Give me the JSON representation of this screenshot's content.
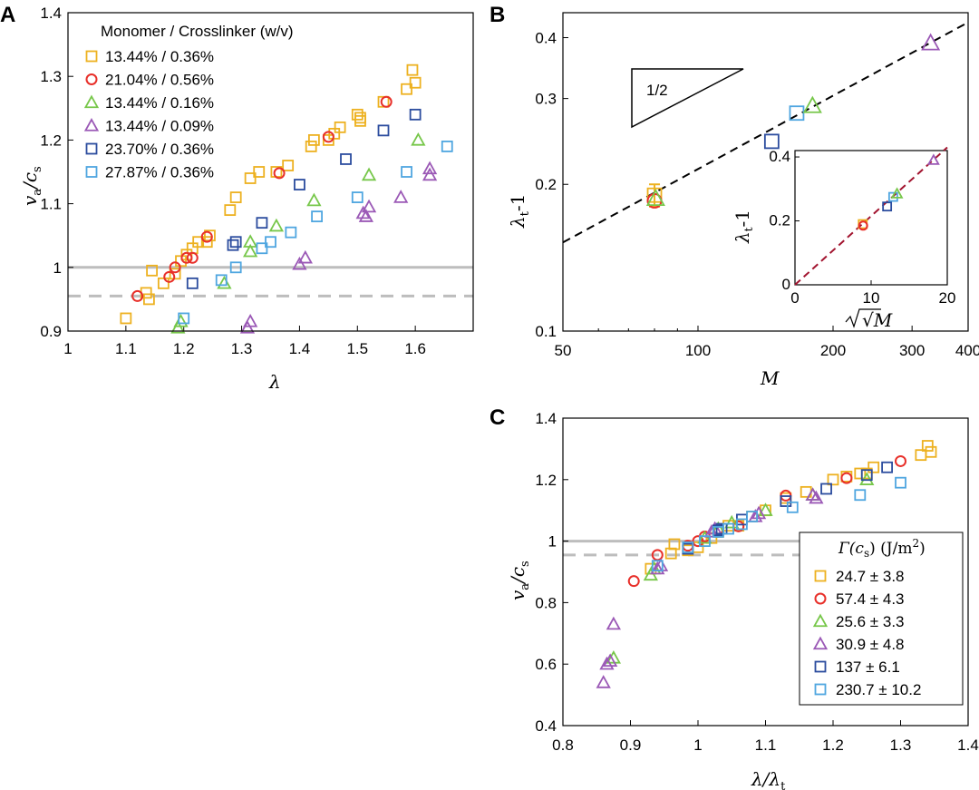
{
  "colors": {
    "orange": "#EDB120",
    "red": "#E8302A",
    "green": "#77C74A",
    "purple": "#9B59B6",
    "navy": "#2B4C9E",
    "lightblue": "#4FA6E0",
    "gray": "#BDBDBD",
    "darkred": "#A2142F"
  },
  "chart_data": [
    {
      "id": "A",
      "panel_label": "A",
      "type": "scatter",
      "xlabel": "λ",
      "ylabel": {
        "main": "v",
        "sub1": "a",
        "mid": "/c",
        "sub2": "s"
      },
      "xlim": [
        1,
        1.7
      ],
      "ylim": [
        0.9,
        1.4
      ],
      "xticks": [
        1,
        1.1,
        1.2,
        1.3,
        1.4,
        1.5,
        1.6
      ],
      "xtick_labels": [
        "1",
        "1.1",
        "1.2",
        "1.3",
        "1.4",
        "1.5",
        "1.6"
      ],
      "yticks": [
        0.9,
        1,
        1.1,
        1.2,
        1.3,
        1.4
      ],
      "ytick_labels": [
        "0.9",
        "1",
        "1.1",
        "1.2",
        "1.3",
        "1.4"
      ],
      "reference_lines": [
        {
          "y": 1.0,
          "style": "solid"
        },
        {
          "y": 0.955,
          "style": "dashed"
        }
      ],
      "legend_title": "Monomer / Crosslinker (w/v)",
      "series": [
        {
          "name": "13.44% / 0.36%",
          "marker": "square",
          "color": "orange",
          "x": [
            1.1,
            1.135,
            1.14,
            1.145,
            1.165,
            1.185,
            1.195,
            1.205,
            1.215,
            1.225,
            1.245,
            1.24,
            1.28,
            1.29,
            1.315,
            1.33,
            1.36,
            1.38,
            1.42,
            1.425,
            1.45,
            1.46,
            1.47,
            1.5,
            1.505,
            1.505,
            1.545,
            1.585,
            1.595,
            1.6
          ],
          "y": [
            0.92,
            0.96,
            0.95,
            0.995,
            0.975,
            0.99,
            1.01,
            1.02,
            1.03,
            1.04,
            1.05,
            1.04,
            1.09,
            1.11,
            1.14,
            1.15,
            1.15,
            1.16,
            1.19,
            1.2,
            1.2,
            1.21,
            1.22,
            1.24,
            1.23,
            1.235,
            1.26,
            1.28,
            1.31,
            1.29
          ]
        },
        {
          "name": "21.04% / 0.56%",
          "marker": "circle",
          "color": "red",
          "x": [
            1.12,
            1.175,
            1.185,
            1.205,
            1.215,
            1.24,
            1.365,
            1.45,
            1.55
          ],
          "y": [
            0.955,
            0.985,
            1.0,
            1.015,
            1.015,
            1.048,
            1.148,
            1.205,
            1.26
          ]
        },
        {
          "name": "13.44% / 0.16%",
          "marker": "triangle",
          "color": "green",
          "x": [
            1.19,
            1.195,
            1.27,
            1.315,
            1.315,
            1.36,
            1.425,
            1.52,
            1.605
          ],
          "y": [
            0.905,
            0.915,
            0.975,
            1.025,
            1.04,
            1.065,
            1.105,
            1.145,
            1.2
          ]
        },
        {
          "name": "13.44% / 0.09%",
          "marker": "triangle",
          "color": "purple",
          "x": [
            1.31,
            1.315,
            1.4,
            1.41,
            1.51,
            1.52,
            1.515,
            1.575,
            1.625,
            1.625
          ],
          "y": [
            0.905,
            0.915,
            1.005,
            1.015,
            1.085,
            1.095,
            1.08,
            1.11,
            1.155,
            1.145
          ]
        },
        {
          "name": "23.70% / 0.36%",
          "marker": "square",
          "color": "navy",
          "x": [
            1.215,
            1.285,
            1.29,
            1.335,
            1.4,
            1.48,
            1.545,
            1.6
          ],
          "y": [
            0.975,
            1.035,
            1.04,
            1.07,
            1.13,
            1.17,
            1.215,
            1.24
          ]
        },
        {
          "name": "27.87% / 0.36%",
          "marker": "square",
          "color": "lightblue",
          "x": [
            1.2,
            1.265,
            1.29,
            1.335,
            1.35,
            1.385,
            1.43,
            1.5,
            1.585,
            1.655
          ],
          "y": [
            0.92,
            0.98,
            1.0,
            1.03,
            1.04,
            1.055,
            1.08,
            1.11,
            1.15,
            1.19
          ]
        }
      ]
    },
    {
      "id": "B",
      "panel_label": "B",
      "type": "scatter",
      "scale": "log-log",
      "xlabel": "M",
      "ylabel": {
        "main": "λ",
        "sub": "t",
        "suffix": "-1"
      },
      "xlim": [
        50,
        400
      ],
      "ylim": [
        0.1,
        0.45
      ],
      "xticks": [
        50,
        100,
        200,
        300,
        400
      ],
      "xtick_labels": [
        "50",
        "100",
        "200",
        "300",
        "400"
      ],
      "yticks": [
        0.1,
        0.2,
        0.3,
        0.4
      ],
      "ytick_labels": [
        "0.1",
        "0.2",
        "0.3",
        "0.4"
      ],
      "slope_label": "1/2",
      "fit": {
        "style": "dashed",
        "x": [
          50,
          400
        ],
        "y": [
          0.152,
          0.43
        ]
      },
      "points": [
        {
          "x": 80,
          "y": 0.19,
          "marker": "square",
          "color": "orange",
          "err": 0.01
        },
        {
          "x": 80,
          "y": 0.185,
          "marker": "circle",
          "color": "red"
        },
        {
          "x": 80.5,
          "y": 0.187,
          "marker": "triangle",
          "color": "green"
        },
        {
          "x": 146,
          "y": 0.245,
          "marker": "square",
          "color": "navy"
        },
        {
          "x": 166,
          "y": 0.28,
          "marker": "square",
          "color": "lightblue"
        },
        {
          "x": 180,
          "y": 0.29,
          "marker": "triangle",
          "color": "green"
        },
        {
          "x": 330,
          "y": 0.39,
          "marker": "triangle",
          "color": "purple"
        }
      ],
      "inset": {
        "xlabel": "√M",
        "ylabel": {
          "main": "λ",
          "sub": "t",
          "suffix": "-1"
        },
        "xlim": [
          0,
          20
        ],
        "ylim": [
          0,
          0.42
        ],
        "xticks": [
          0,
          10,
          20
        ],
        "xtick_labels": [
          "0",
          "10",
          "20"
        ],
        "yticks": [
          0,
          0.2,
          0.4
        ],
        "ytick_labels": [
          "0",
          "0.2",
          "0.4"
        ],
        "fit": {
          "style": "dashed",
          "color": "darkred",
          "x": [
            0,
            20
          ],
          "y": [
            0,
            0.43
          ]
        },
        "points": [
          {
            "x": 8.9,
            "y": 0.19,
            "marker": "square",
            "color": "orange"
          },
          {
            "x": 8.95,
            "y": 0.185,
            "marker": "circle",
            "color": "red"
          },
          {
            "x": 12.1,
            "y": 0.245,
            "marker": "square",
            "color": "navy"
          },
          {
            "x": 12.9,
            "y": 0.275,
            "marker": "square",
            "color": "lightblue"
          },
          {
            "x": 13.4,
            "y": 0.285,
            "marker": "triangle",
            "color": "green"
          },
          {
            "x": 18.2,
            "y": 0.39,
            "marker": "triangle",
            "color": "purple"
          }
        ]
      }
    },
    {
      "id": "C",
      "panel_label": "C",
      "type": "scatter",
      "xlabel": "λ/λ",
      "xlabel_sub": "t",
      "ylabel": {
        "main": "v",
        "sub1": "a",
        "mid": "/c",
        "sub2": "s"
      },
      "xlim": [
        0.8,
        1.4
      ],
      "ylim": [
        0.4,
        1.4
      ],
      "xticks": [
        0.8,
        0.9,
        1,
        1.1,
        1.2,
        1.3,
        1.4
      ],
      "xtick_labels": [
        "0.8",
        "0.9",
        "1",
        "1.1",
        "1.2",
        "1.3",
        "1.4"
      ],
      "yticks": [
        0.4,
        0.6,
        0.8,
        1,
        1.2,
        1.4
      ],
      "ytick_labels": [
        "0.4",
        "0.6",
        "0.8",
        "1",
        "1.2",
        "1.4"
      ],
      "reference_lines": [
        {
          "y": 1.0,
          "style": "solid"
        },
        {
          "y": 0.955,
          "style": "dashed"
        }
      ],
      "legend_title": {
        "main": "Γ(c",
        "sub": "s",
        "rest": ") (J/m",
        "sup": "2",
        "end": ")"
      },
      "series": [
        {
          "name": "24.7 ± 3.8",
          "marker": "square",
          "color": "orange",
          "x": [
            0.93,
            0.96,
            0.965,
            0.985,
            1.0,
            1.02,
            1.03,
            1.045,
            1.06,
            1.08,
            1.1,
            1.13,
            1.16,
            1.2,
            1.22,
            1.24,
            1.25,
            1.26,
            1.33,
            1.34,
            1.345
          ],
          "y": [
            0.91,
            0.96,
            0.99,
            0.97,
            0.98,
            1.01,
            1.03,
            1.05,
            1.05,
            1.08,
            1.1,
            1.14,
            1.16,
            1.2,
            1.21,
            1.22,
            1.22,
            1.24,
            1.28,
            1.31,
            1.29
          ]
        },
        {
          "name": "57.4 ± 4.3",
          "marker": "circle",
          "color": "red",
          "x": [
            0.905,
            0.94,
            0.985,
            1.0,
            1.01,
            1.03,
            1.06,
            1.13,
            1.22,
            1.3
          ],
          "y": [
            0.87,
            0.955,
            0.985,
            1.0,
            1.015,
            1.04,
            1.048,
            1.148,
            1.205,
            1.26
          ]
        },
        {
          "name": "25.6 ± 3.3",
          "marker": "triangle",
          "color": "green",
          "x": [
            0.875,
            0.93,
            0.935,
            1.01,
            1.03,
            1.05,
            1.1,
            1.17,
            1.25
          ],
          "y": [
            0.62,
            0.89,
            0.91,
            1.01,
            1.04,
            1.06,
            1.1,
            1.15,
            1.2
          ]
        },
        {
          "name": "30.9 ± 4.8",
          "marker": "triangle",
          "color": "purple",
          "x": [
            0.86,
            0.865,
            0.87,
            0.875,
            0.94,
            0.945,
            1.02,
            1.025,
            1.085,
            1.09,
            1.17,
            1.175
          ],
          "y": [
            0.54,
            0.6,
            0.61,
            0.73,
            0.91,
            0.92,
            1.03,
            1.04,
            1.08,
            1.09,
            1.15,
            1.14
          ]
        },
        {
          "name": "137 ± 6.1",
          "marker": "square",
          "color": "navy",
          "x": [
            0.985,
            1.03,
            1.035,
            1.065,
            1.13,
            1.19,
            1.25,
            1.28
          ],
          "y": [
            0.975,
            1.035,
            1.04,
            1.07,
            1.13,
            1.17,
            1.215,
            1.24
          ]
        },
        {
          "name": "230.7 ± 10.2",
          "marker": "square",
          "color": "lightblue",
          "x": [
            0.94,
            0.985,
            1.01,
            1.03,
            1.045,
            1.065,
            1.08,
            1.14,
            1.24,
            1.3
          ],
          "y": [
            0.92,
            0.98,
            1.0,
            1.03,
            1.04,
            1.055,
            1.08,
            1.11,
            1.15,
            1.19
          ]
        }
      ]
    }
  ]
}
